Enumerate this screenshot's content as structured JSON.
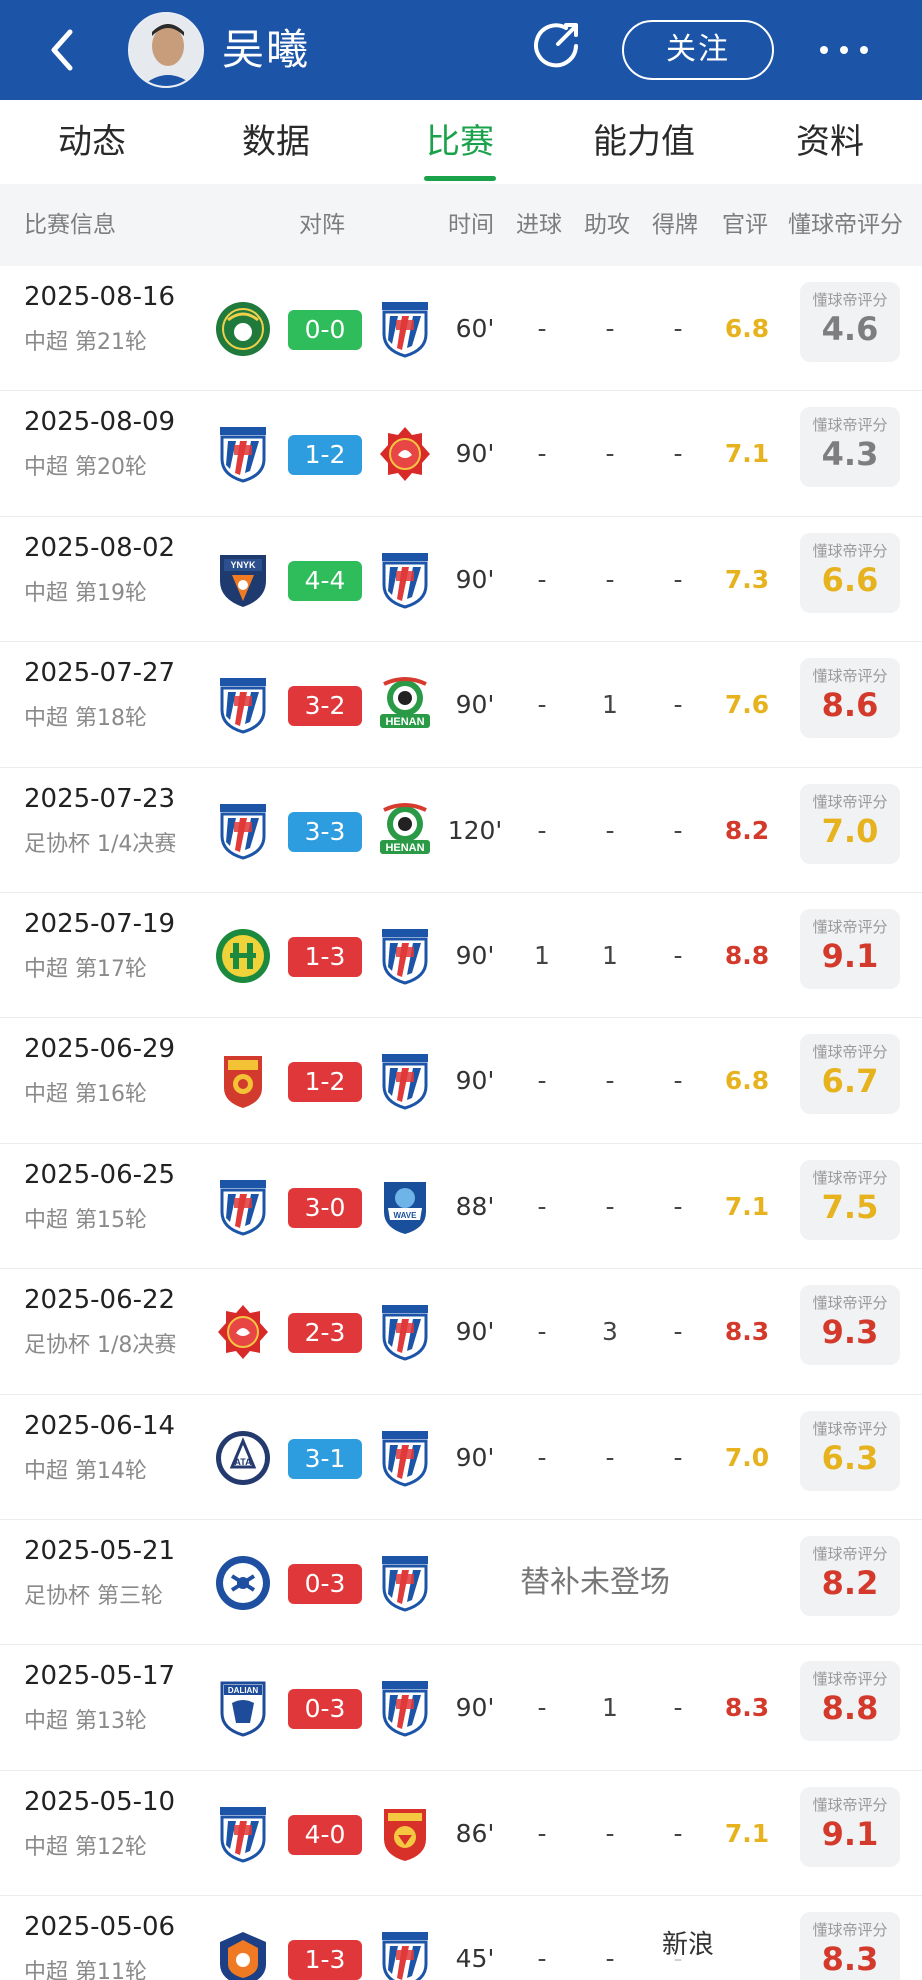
{
  "header": {
    "player_name": "吴曦",
    "follow_label": "关注",
    "background": "#1c55a8",
    "icons": {
      "back": "chevron-left-icon",
      "share": "share-icon",
      "more": "more-dots-icon"
    }
  },
  "tabs": [
    {
      "label": "动态",
      "active": false
    },
    {
      "label": "数据",
      "active": false
    },
    {
      "label": "比赛",
      "active": true
    },
    {
      "label": "能力值",
      "active": false
    },
    {
      "label": "资料",
      "active": false
    }
  ],
  "columns": {
    "info": "比赛信息",
    "matchup": "对阵",
    "time": "时间",
    "goals": "进球",
    "assists": "助攻",
    "cards": "得牌",
    "official": "官评",
    "fan": "懂球帝评分"
  },
  "fan_label": "懂球帝评分",
  "colors": {
    "green": "#2fbd5b",
    "blue": "#2d9de0",
    "red": "#e0383a",
    "official_yellow": "#e6b31e",
    "official_red": "#d33a2c",
    "fan_grey": "#7e7e7e",
    "fan_yellow": "#e6b31e",
    "fan_red": "#d33a2c",
    "tab_active": "#1aa24a"
  },
  "matches": [
    {
      "date": "2025-08-16",
      "comp": "中超 第21轮",
      "home": "zhejiang",
      "away": "shenhua",
      "score": "0-0",
      "result": "green",
      "time": "60'",
      "goals": "-",
      "assists": "-",
      "cards": "-",
      "official": "6.8",
      "official_color": "official_yellow",
      "fan": "4.6",
      "fan_color": "fan_grey"
    },
    {
      "date": "2025-08-09",
      "comp": "中超 第20轮",
      "home": "shenhua",
      "away": "port",
      "score": "1-2",
      "result": "blue",
      "time": "90'",
      "goals": "-",
      "assists": "-",
      "cards": "-",
      "official": "7.1",
      "official_color": "official_yellow",
      "fan": "4.3",
      "fan_color": "fan_grey"
    },
    {
      "date": "2025-08-02",
      "comp": "中超 第19轮",
      "home": "yunnan",
      "away": "shenhua",
      "score": "4-4",
      "result": "green",
      "time": "90'",
      "goals": "-",
      "assists": "-",
      "cards": "-",
      "official": "7.3",
      "official_color": "official_yellow",
      "fan": "6.6",
      "fan_color": "fan_yellow"
    },
    {
      "date": "2025-07-27",
      "comp": "中超 第18轮",
      "home": "shenhua",
      "away": "henan",
      "score": "3-2",
      "result": "red",
      "time": "90'",
      "goals": "-",
      "assists": "1",
      "cards": "-",
      "official": "7.6",
      "official_color": "official_yellow",
      "fan": "8.6",
      "fan_color": "fan_red"
    },
    {
      "date": "2025-07-23",
      "comp": "足协杯 1/4决赛",
      "home": "shenhua",
      "away": "henan",
      "score": "3-3",
      "result": "blue",
      "time": "120'",
      "goals": "-",
      "assists": "-",
      "cards": "-",
      "official": "8.2",
      "official_color": "official_red",
      "fan": "7.0",
      "fan_color": "fan_yellow"
    },
    {
      "date": "2025-07-19",
      "comp": "中超 第17轮",
      "home": "guoan",
      "away": "shenhua",
      "score": "1-3",
      "result": "red",
      "time": "90'",
      "goals": "1",
      "assists": "1",
      "cards": "-",
      "official": "8.8",
      "official_color": "official_red",
      "fan": "9.1",
      "fan_color": "fan_red"
    },
    {
      "date": "2025-06-29",
      "comp": "中超 第16轮",
      "home": "changchun",
      "away": "shenhua",
      "score": "1-2",
      "result": "red",
      "time": "90'",
      "goals": "-",
      "assists": "-",
      "cards": "-",
      "official": "6.8",
      "official_color": "official_yellow",
      "fan": "6.7",
      "fan_color": "fan_yellow"
    },
    {
      "date": "2025-06-25",
      "comp": "中超 第15轮",
      "home": "shenhua",
      "away": "qingdao",
      "score": "3-0",
      "result": "red",
      "time": "88'",
      "goals": "-",
      "assists": "-",
      "cards": "-",
      "official": "7.1",
      "official_color": "official_yellow",
      "fan": "7.5",
      "fan_color": "fan_yellow"
    },
    {
      "date": "2025-06-22",
      "comp": "足协杯 1/8决赛",
      "home": "port",
      "away": "shenhua",
      "score": "2-3",
      "result": "red",
      "time": "90'",
      "goals": "-",
      "assists": "3",
      "cards": "-",
      "official": "8.3",
      "official_color": "official_red",
      "fan": "9.3",
      "fan_color": "fan_red"
    },
    {
      "date": "2025-06-14",
      "comp": "中超 第14轮",
      "home": "meizhou",
      "away": "shenhua",
      "score": "3-1",
      "result": "blue",
      "time": "90'",
      "goals": "-",
      "assists": "-",
      "cards": "-",
      "official": "7.0",
      "official_color": "official_yellow",
      "fan": "6.3",
      "fan_color": "fan_yellow"
    },
    {
      "date": "2025-05-21",
      "comp": "足协杯 第三轮",
      "home": "kuo",
      "away": "shenhua",
      "score": "0-3",
      "result": "red",
      "sub_note": "替补未登场",
      "fan": "8.2",
      "fan_color": "fan_red"
    },
    {
      "date": "2025-05-17",
      "comp": "中超 第13轮",
      "home": "dalian",
      "away": "shenhua",
      "score": "0-3",
      "result": "red",
      "time": "90'",
      "goals": "-",
      "assists": "1",
      "cards": "-",
      "official": "8.3",
      "official_color": "official_red",
      "fan": "8.8",
      "fan_color": "fan_red"
    },
    {
      "date": "2025-05-10",
      "comp": "中超 第12轮",
      "home": "shenhua",
      "away": "shenzhen",
      "score": "4-0",
      "result": "red",
      "time": "86'",
      "goals": "-",
      "assists": "-",
      "cards": "-",
      "official": "7.1",
      "official_color": "official_yellow",
      "fan": "9.1",
      "fan_color": "fan_red"
    },
    {
      "date": "2025-05-06",
      "comp": "中超 第11轮",
      "home": "meizhou2",
      "away": "shenhua",
      "score": "1-3",
      "result": "red",
      "time": "45'",
      "goals": "-",
      "assists": "-",
      "cards": "-",
      "official": "",
      "official_color": "official_red",
      "fan": "8.3",
      "fan_color": "fan_red"
    }
  ],
  "watermark": "新浪"
}
